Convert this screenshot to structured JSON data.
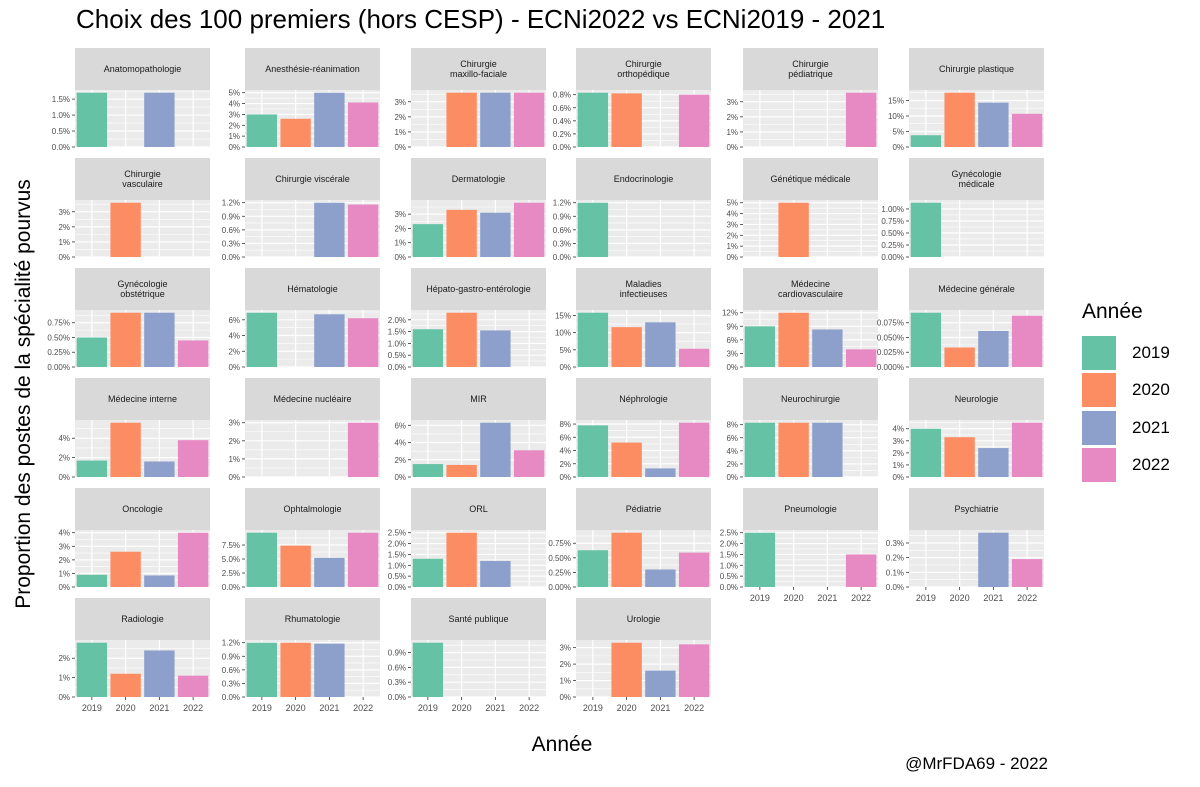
{
  "title": "Choix des 100 premiers (hors CESP) - ECNi2022 vs ECNi2019 - 2021",
  "caption": "@MrFDA69 - 2022",
  "xlabel": "Année",
  "ylabel": "Proportion des postes de la spécialité pourvus",
  "legend": {
    "title": "Année",
    "items": [
      {
        "label": "2019",
        "color": "#66C2A5"
      },
      {
        "label": "2020",
        "color": "#FC8D62"
      },
      {
        "label": "2021",
        "color": "#8DA0CB"
      },
      {
        "label": "2022",
        "color": "#E78AC3"
      }
    ]
  },
  "chart_data": {
    "type": "bar",
    "facet_layout": "6 columns",
    "scales": "free_y",
    "categories": [
      "2019",
      "2020",
      "2021",
      "2022"
    ],
    "colors": [
      "#66C2A5",
      "#FC8D62",
      "#8DA0CB",
      "#E78AC3"
    ],
    "grid": true,
    "legend_position": "right",
    "panels": [
      {
        "label": [
          "Anatomopathologie"
        ],
        "values": [
          1.7,
          null,
          1.7,
          null
        ],
        "ticks": [
          0,
          0.5,
          1.0,
          1.5
        ],
        "tick_labels": [
          "0.0%",
          "0.5%",
          "1.0%",
          "1.5%"
        ]
      },
      {
        "label": [
          "Anesthésie-réanimation"
        ],
        "values": [
          3.0,
          2.6,
          5.0,
          4.1
        ],
        "ticks": [
          0,
          1,
          2,
          3,
          4,
          5
        ],
        "tick_labels": [
          "0%",
          "1%",
          "2%",
          "3%",
          "4%",
          "5%"
        ]
      },
      {
        "label": [
          "Chirurgie",
          "maxillo-faciale"
        ],
        "values": [
          null,
          3.6,
          3.6,
          3.6
        ],
        "ticks": [
          0,
          1,
          2,
          3
        ],
        "tick_labels": [
          "0%",
          "1%",
          "2%",
          "3%"
        ]
      },
      {
        "label": [
          "Chirurgie",
          "orthopédique"
        ],
        "values": [
          0.83,
          0.82,
          null,
          0.8
        ],
        "ticks": [
          0,
          0.2,
          0.4,
          0.6,
          0.8
        ],
        "tick_labels": [
          "0.0%",
          "0.2%",
          "0.4%",
          "0.6%",
          "0.8%"
        ]
      },
      {
        "label": [
          "Chirurgie",
          "pédiatrique"
        ],
        "values": [
          null,
          null,
          null,
          3.6
        ],
        "ticks": [
          0,
          1,
          2,
          3
        ],
        "tick_labels": [
          "0%",
          "1%",
          "2%",
          "3%"
        ]
      },
      {
        "label": [
          "Chirurgie plastique"
        ],
        "values": [
          3.8,
          17.5,
          14.3,
          10.7
        ],
        "ticks": [
          0,
          5,
          10,
          15
        ],
        "tick_labels": [
          "0%",
          "5%",
          "10%",
          "15%"
        ]
      },
      {
        "label": [
          "Chirurgie",
          "vasculaire"
        ],
        "values": [
          null,
          3.6,
          null,
          null
        ],
        "ticks": [
          0,
          1,
          2,
          3
        ],
        "tick_labels": [
          "0%",
          "1%",
          "2%",
          "3%"
        ]
      },
      {
        "label": [
          "Chirurgie viscérale"
        ],
        "values": [
          null,
          null,
          1.2,
          1.16
        ],
        "ticks": [
          0,
          0.3,
          0.6,
          0.9,
          1.2
        ],
        "tick_labels": [
          "0.0%",
          "0.3%",
          "0.6%",
          "0.9%",
          "1.2%"
        ]
      },
      {
        "label": [
          "Dermatologie"
        ],
        "values": [
          2.3,
          3.3,
          3.1,
          3.8
        ],
        "ticks": [
          0,
          1,
          2,
          3
        ],
        "tick_labels": [
          "0%",
          "1%",
          "2%",
          "3%"
        ]
      },
      {
        "label": [
          "Endocrinologie"
        ],
        "values": [
          1.2,
          null,
          null,
          null
        ],
        "ticks": [
          0,
          0.3,
          0.6,
          0.9,
          1.2
        ],
        "tick_labels": [
          "0.0%",
          "0.3%",
          "0.6%",
          "0.9%",
          "1.2%"
        ]
      },
      {
        "label": [
          "Génétique médicale"
        ],
        "values": [
          null,
          5.0,
          null,
          null
        ],
        "ticks": [
          0,
          1,
          2,
          3,
          4,
          5
        ],
        "tick_labels": [
          "0%",
          "1%",
          "2%",
          "3%",
          "4%",
          "5%"
        ]
      },
      {
        "label": [
          "Gynécologie",
          "médicale"
        ],
        "values": [
          1.13,
          null,
          null,
          null
        ],
        "ticks": [
          0,
          0.25,
          0.5,
          0.75,
          1.0
        ],
        "tick_labels": [
          "0.00%",
          "0.25%",
          "0.50%",
          "0.75%",
          "1.00%"
        ]
      },
      {
        "label": [
          "Gynécologie",
          "obstétrique"
        ],
        "values": [
          0.5,
          0.92,
          0.92,
          0.45
        ],
        "ticks": [
          0,
          0.25,
          0.5,
          0.75
        ],
        "tick_labels": [
          "0.00%",
          "0.25%",
          "0.50%",
          "0.75%"
        ]
      },
      {
        "label": [
          "Hématologie"
        ],
        "values": [
          6.9,
          null,
          6.7,
          6.2
        ],
        "ticks": [
          0,
          2,
          4,
          6
        ],
        "tick_labels": [
          "0%",
          "2%",
          "4%",
          "6%"
        ]
      },
      {
        "label": [
          "Hépato-gastro-entérologie"
        ],
        "values": [
          1.6,
          2.3,
          1.55,
          null
        ],
        "ticks": [
          0,
          0.5,
          1.0,
          1.5,
          2.0
        ],
        "tick_labels": [
          "0.0%",
          "0.5%",
          "1.0%",
          "1.5%",
          "2.0%"
        ]
      },
      {
        "label": [
          "Maladies",
          "infectieuses"
        ],
        "values": [
          15.8,
          11.6,
          13.0,
          5.3
        ],
        "ticks": [
          0,
          5,
          10,
          15
        ],
        "tick_labels": [
          "0%",
          "5%",
          "10%",
          "15%"
        ]
      },
      {
        "label": [
          "Médecine",
          "cardiovasculaire"
        ],
        "values": [
          9.0,
          12.0,
          8.3,
          3.9
        ],
        "ticks": [
          0,
          3,
          6,
          9,
          12
        ],
        "tick_labels": [
          "0%",
          "3%",
          "6%",
          "9%",
          "12%"
        ]
      },
      {
        "label": [
          "Médecine générale"
        ],
        "values": [
          0.092,
          0.033,
          0.061,
          0.087
        ],
        "ticks": [
          0,
          0.025,
          0.05,
          0.075
        ],
        "tick_labels": [
          "0.000%",
          "0.025%",
          "0.050%",
          "0.075%"
        ]
      },
      {
        "label": [
          "Médecine interne"
        ],
        "values": [
          1.7,
          5.6,
          1.6,
          3.8
        ],
        "ticks": [
          0,
          2,
          4
        ],
        "tick_labels": [
          "0%",
          "2%",
          "4%"
        ]
      },
      {
        "label": [
          "Médecine nucléaire"
        ],
        "values": [
          null,
          null,
          null,
          3.0
        ],
        "ticks": [
          0,
          1,
          2,
          3
        ],
        "tick_labels": [
          "0%",
          "1%",
          "2%",
          "3%"
        ]
      },
      {
        "label": [
          "MIR"
        ],
        "values": [
          1.5,
          1.4,
          6.3,
          3.1
        ],
        "ticks": [
          0,
          2,
          4,
          6
        ],
        "tick_labels": [
          "0%",
          "2%",
          "4%",
          "6%"
        ]
      },
      {
        "label": [
          "Néphrologie"
        ],
        "values": [
          7.8,
          5.2,
          1.3,
          8.2
        ],
        "ticks": [
          0,
          2,
          4,
          6,
          8
        ],
        "tick_labels": [
          "0%",
          "2%",
          "4%",
          "6%",
          "8%"
        ]
      },
      {
        "label": [
          "Neurochirurgie"
        ],
        "values": [
          8.3,
          8.3,
          8.3,
          null
        ],
        "ticks": [
          0,
          2,
          4,
          6,
          8
        ],
        "tick_labels": [
          "0%",
          "2%",
          "4%",
          "6%",
          "8%"
        ]
      },
      {
        "label": [
          "Neurologie"
        ],
        "values": [
          4.0,
          3.3,
          2.4,
          4.5
        ],
        "ticks": [
          0,
          1,
          2,
          3,
          4
        ],
        "tick_labels": [
          "0%",
          "1%",
          "2%",
          "3%",
          "4%"
        ]
      },
      {
        "label": [
          "Oncologie"
        ],
        "values": [
          0.9,
          2.6,
          0.85,
          4.0
        ],
        "ticks": [
          0,
          1,
          2,
          3,
          4
        ],
        "tick_labels": [
          "0%",
          "1%",
          "2%",
          "3%",
          "4%"
        ]
      },
      {
        "label": [
          "Ophtalmologie"
        ],
        "values": [
          9.7,
          7.4,
          5.2,
          9.7
        ],
        "ticks": [
          0,
          2.5,
          5.0,
          7.5
        ],
        "tick_labels": [
          "0.0%",
          "2.5%",
          "5.0%",
          "7.5%"
        ]
      },
      {
        "label": [
          "ORL"
        ],
        "values": [
          1.3,
          2.5,
          1.2,
          null
        ],
        "ticks": [
          0,
          0.5,
          1.0,
          1.5,
          2.0,
          2.5
        ],
        "tick_labels": [
          "0.0%",
          "0.5%",
          "1.0%",
          "1.5%",
          "2.0%",
          "2.5%"
        ]
      },
      {
        "label": [
          "Pédiatrie"
        ],
        "values": [
          0.63,
          0.93,
          0.3,
          0.59
        ],
        "ticks": [
          0,
          0.25,
          0.5,
          0.75
        ],
        "tick_labels": [
          "0.00%",
          "0.25%",
          "0.50%",
          "0.75%"
        ]
      },
      {
        "label": [
          "Pneumologie"
        ],
        "values": [
          2.5,
          null,
          null,
          1.5
        ],
        "ticks": [
          0,
          0.5,
          1.0,
          1.5,
          2.0,
          2.5
        ],
        "tick_labels": [
          "0.0%",
          "0.5%",
          "1.0%",
          "1.5%",
          "2.0%",
          "2.5%"
        ]
      },
      {
        "label": [
          "Psychiatrie"
        ],
        "values": [
          null,
          null,
          0.37,
          0.19
        ],
        "ticks": [
          0,
          0.1,
          0.2,
          0.3
        ],
        "tick_labels": [
          "0.0%",
          "0.1%",
          "0.2%",
          "0.3%"
        ]
      },
      {
        "label": [
          "Radiologie"
        ],
        "values": [
          2.8,
          1.2,
          2.4,
          1.1
        ],
        "ticks": [
          0,
          1,
          2
        ],
        "tick_labels": [
          "0%",
          "1%",
          "2%"
        ]
      },
      {
        "label": [
          "Rhumatologie"
        ],
        "values": [
          1.2,
          1.2,
          1.18,
          null
        ],
        "ticks": [
          0,
          0.3,
          0.6,
          0.9,
          1.2
        ],
        "tick_labels": [
          "0.0%",
          "0.3%",
          "0.6%",
          "0.9%",
          "1.2%"
        ]
      },
      {
        "label": [
          "Santé publique"
        ],
        "values": [
          1.1,
          null,
          null,
          null
        ],
        "ticks": [
          0,
          0.3,
          0.6,
          0.9
        ],
        "tick_labels": [
          "0.0%",
          "0.3%",
          "0.6%",
          "0.9%"
        ]
      },
      {
        "label": [
          "Urologie"
        ],
        "values": [
          null,
          3.3,
          1.6,
          3.2
        ],
        "ticks": [
          0,
          1,
          2,
          3
        ],
        "tick_labels": [
          "0%",
          "1%",
          "2%",
          "3%"
        ]
      }
    ]
  }
}
